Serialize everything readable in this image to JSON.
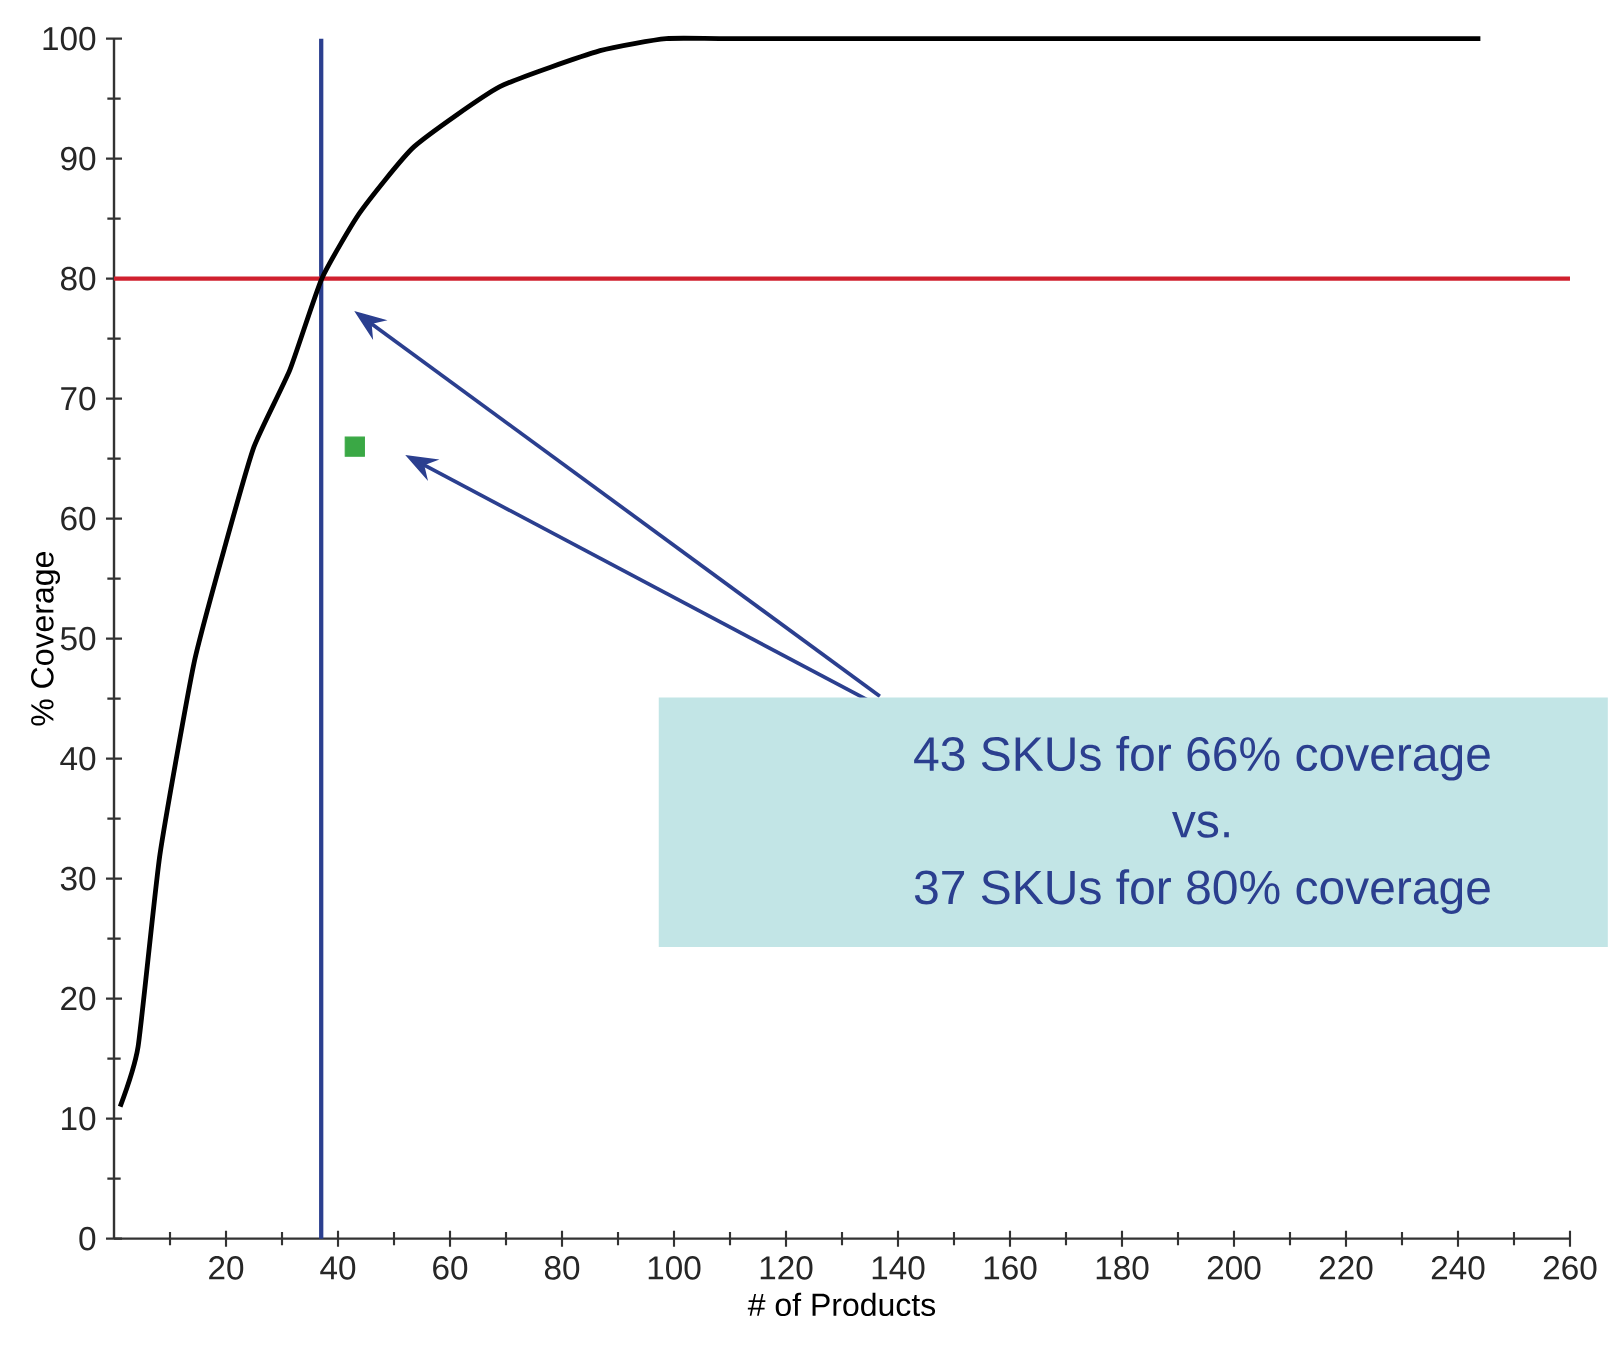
{
  "chart_data": {
    "type": "line",
    "xlabel": "# of Products",
    "ylabel": "% Coverage",
    "xlim": [
      0,
      260
    ],
    "ylim": [
      0,
      100
    ],
    "xticks": [
      20,
      40,
      60,
      80,
      100,
      120,
      140,
      160,
      180,
      200,
      220,
      240,
      260
    ],
    "yticks": [
      0,
      10,
      20,
      30,
      40,
      50,
      60,
      70,
      80,
      90,
      100
    ],
    "grid": false,
    "series": [
      {
        "color": "#000000",
        "marker": "none",
        "line_style": "solid",
        "x": [
          1.1,
          4.3,
          8.2,
          14.3,
          20,
          25,
          31.4,
          37.1,
          43.9,
          53.6,
          68.9,
          86.8,
          98.6,
          110,
          150,
          200,
          244
        ],
        "values": [
          11,
          16,
          32,
          48,
          58,
          66,
          72.4,
          80,
          85.5,
          91,
          96,
          99,
          100,
          100,
          100,
          100,
          100
        ]
      },
      {
        "type": "scatter",
        "color": "#3aa845",
        "marker": "square",
        "x": [
          43
        ],
        "values": [
          66
        ]
      }
    ],
    "ref_lines": [
      {
        "axis": "x",
        "value": 37,
        "color": "#2b3f8f"
      },
      {
        "axis": "y",
        "value": 80,
        "color": "#d0202e"
      }
    ],
    "annotations": [
      "43 SKUs for 66% coverage",
      "vs.",
      "37 SKUs for 80% coverage"
    ]
  }
}
